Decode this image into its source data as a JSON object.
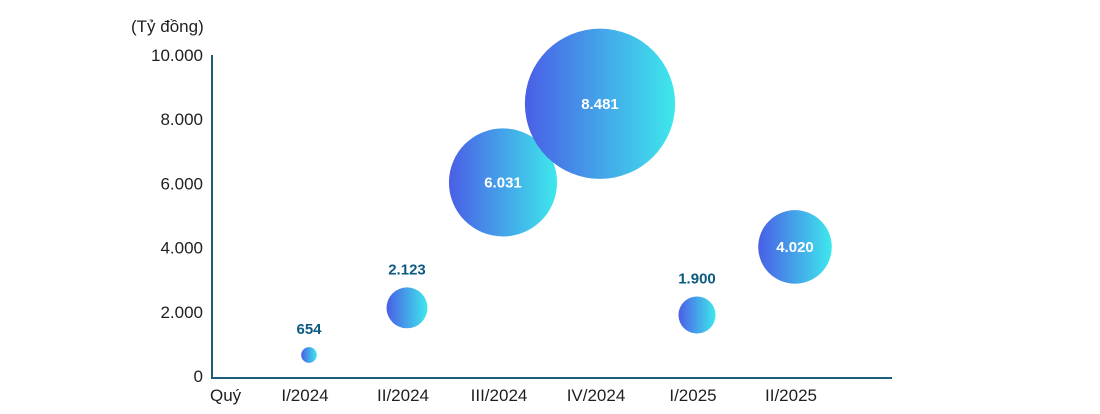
{
  "chart_data": {
    "type": "scatter",
    "unit_label": "(Tỷ đồng)",
    "x_axis_prefix": "Quý",
    "categories": [
      "I/2024",
      "II/2024",
      "III/2024",
      "IV/2024",
      "I/2025",
      "II/2025"
    ],
    "values": [
      654,
      2123,
      6031,
      8481,
      1900,
      4020
    ],
    "value_labels": [
      "654",
      "2.123",
      "6.031",
      "8.481",
      "1.900",
      "4.020"
    ],
    "label_inside": [
      false,
      false,
      true,
      true,
      false,
      true
    ],
    "yticks": [
      0,
      2000,
      4000,
      6000,
      8000,
      10000
    ],
    "ytick_labels": [
      "0",
      "2.000",
      "4.000",
      "6.000",
      "8.000",
      "10.000"
    ],
    "ylim": [
      0,
      10000
    ],
    "grid": false,
    "legend": "none",
    "colors": {
      "bubble_start": "#4a5ee6",
      "bubble_end": "#3ee8ec",
      "axis": "#1c5f7d",
      "outside_label": "#0d5a80",
      "inside_label": "#ffffff"
    }
  }
}
